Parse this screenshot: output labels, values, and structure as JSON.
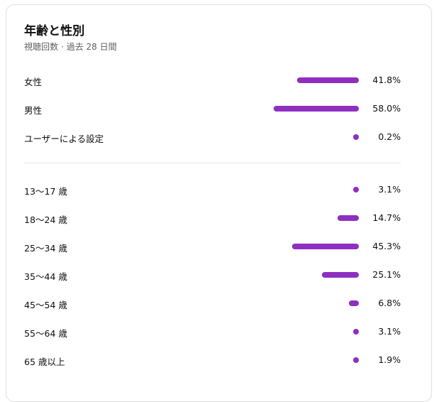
{
  "card": {
    "title": "年齢と性別",
    "subtitle": "視聴回数 · 過去 28 日間"
  },
  "colors": {
    "bar": "#8e2fc0"
  },
  "gender": [
    {
      "label": "女性",
      "value_text": "41.8%",
      "value": 41.8
    },
    {
      "label": "男性",
      "value_text": "58.0%",
      "value": 58.0
    },
    {
      "label": "ユーザーによる設定",
      "value_text": "0.2%",
      "value": 0.2
    }
  ],
  "age": [
    {
      "label": "13〜17 歳",
      "value_text": "3.1%",
      "value": 3.1
    },
    {
      "label": "18〜24 歳",
      "value_text": "14.7%",
      "value": 14.7
    },
    {
      "label": "25〜34 歳",
      "value_text": "45.3%",
      "value": 45.3
    },
    {
      "label": "35〜44 歳",
      "value_text": "25.1%",
      "value": 25.1
    },
    {
      "label": "45〜54 歳",
      "value_text": "6.8%",
      "value": 6.8
    },
    {
      "label": "55〜64 歳",
      "value_text": "3.1%",
      "value": 3.1
    },
    {
      "label": "65 歳以上",
      "value_text": "1.9%",
      "value": 1.9
    }
  ]
}
